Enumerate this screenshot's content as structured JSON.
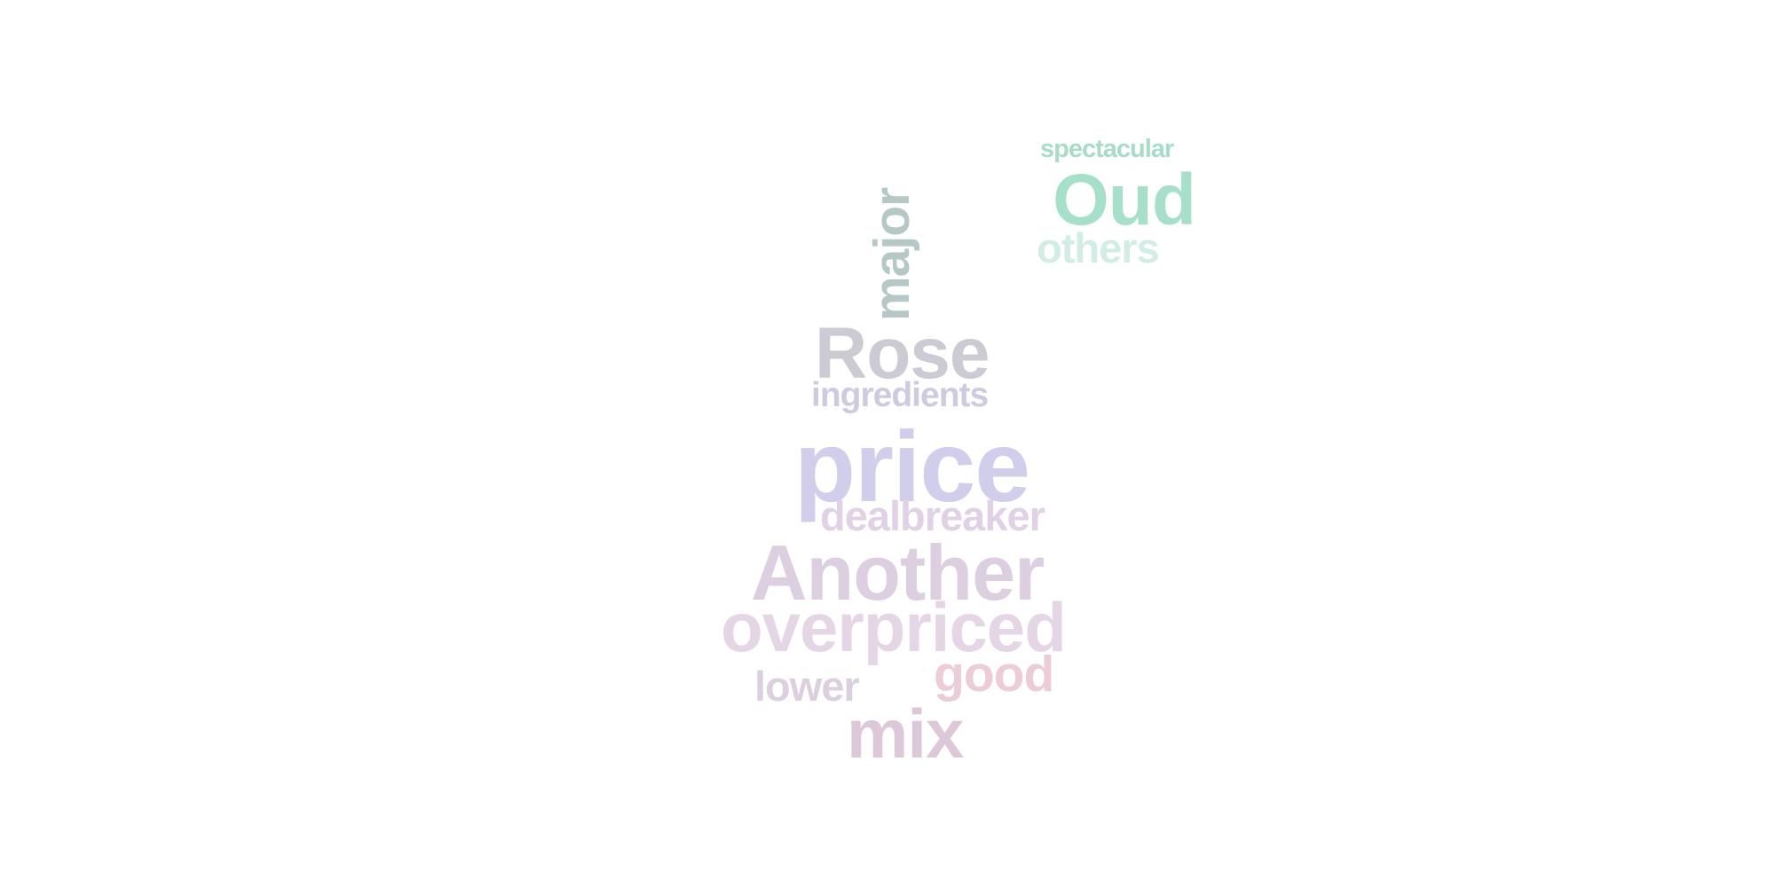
{
  "word_cloud": {
    "words": [
      {
        "text": "spectacular",
        "color": "#a8dcc8"
      },
      {
        "text": "Oud",
        "color": "#a6dfca"
      },
      {
        "text": "others",
        "color": "#d2ece6"
      },
      {
        "text": "major",
        "color": "#b6c8c6"
      },
      {
        "text": "Rose",
        "color": "#cccad2"
      },
      {
        "text": "ingredients",
        "color": "#cdcbe0"
      },
      {
        "text": "price",
        "color": "#d0ceea"
      },
      {
        "text": "dealbreaker",
        "color": "#e0d2e4"
      },
      {
        "text": "Another",
        "color": "#dccfe0"
      },
      {
        "text": "overpriced",
        "color": "#e4d6e4"
      },
      {
        "text": "lower",
        "color": "#dcd0e0"
      },
      {
        "text": "good",
        "color": "#ecccd8"
      },
      {
        "text": "mix",
        "color": "#dcc8d8"
      }
    ]
  }
}
